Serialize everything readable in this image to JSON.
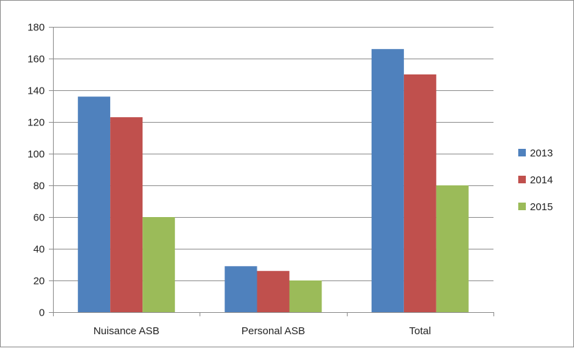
{
  "chart_data": {
    "type": "bar",
    "categories": [
      "Nuisance ASB",
      "Personal ASB",
      "Total"
    ],
    "series": [
      {
        "name": "2013",
        "color": "#4F81BD",
        "values": [
          136,
          29,
          166
        ]
      },
      {
        "name": "2014",
        "color": "#C0504D",
        "values": [
          123,
          26,
          150
        ]
      },
      {
        "name": "2015",
        "color": "#9BBB59",
        "values": [
          60,
          20,
          80
        ]
      }
    ],
    "ylim": [
      0,
      180
    ],
    "yticks": [
      0,
      20,
      40,
      60,
      80,
      100,
      120,
      140,
      160,
      180
    ],
    "grid": true,
    "legend_position": "right"
  }
}
